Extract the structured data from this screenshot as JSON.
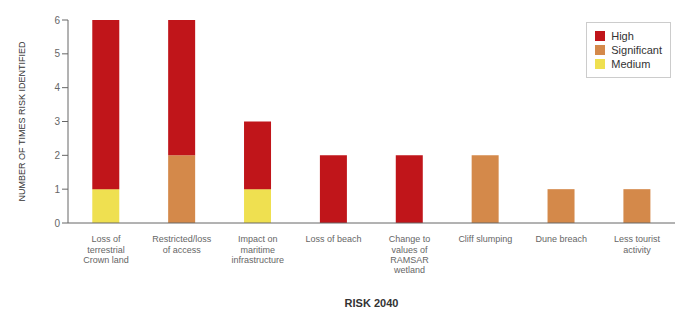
{
  "chart_data": {
    "type": "bar",
    "stacked": true,
    "xlabel": "RISK 2040",
    "ylabel": "NUMBER OF TIMES RISK IDENTIFIED",
    "categories": [
      "Loss of\nterrestrial\nCrown land",
      "Restricted/loss\nof access",
      "Impact on\nmaritime\ninfrastructure",
      "Loss of beach",
      "Change to\nvalues of\nRAMSAR\nwetland",
      "Cliff slumping",
      "Dune breach",
      "Less tourist\nactivity"
    ],
    "series": [
      {
        "name": "High",
        "color": "#c0151a",
        "values": [
          5,
          4,
          2,
          2,
          2,
          0,
          0,
          0
        ]
      },
      {
        "name": "Significant",
        "color": "#d4894a",
        "values": [
          0,
          2,
          0,
          0,
          0,
          2,
          1,
          1
        ]
      },
      {
        "name": "Medium",
        "color": "#efe050",
        "values": [
          1,
          0,
          1,
          0,
          0,
          0,
          0,
          0
        ]
      }
    ],
    "ylim": [
      0,
      6
    ],
    "yticks": [
      0,
      1,
      2,
      3,
      4,
      5,
      6
    ],
    "grid": false,
    "legend": "upper right"
  }
}
